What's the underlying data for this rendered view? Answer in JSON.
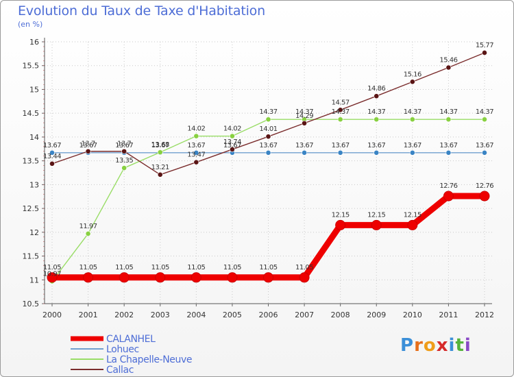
{
  "title": "Evolution du Taux de Taxe d'Habitation",
  "subtitle": "(en %)",
  "logo": {
    "letters": [
      "P",
      "r",
      "o",
      "x",
      "i",
      "t",
      "i"
    ],
    "colors": [
      "#3b8fd8",
      "#e66f1b",
      "#ef9d1a",
      "#d62a2a",
      "#3b8fd8",
      "#55b33b",
      "#8a49c6"
    ]
  },
  "chart_data": {
    "type": "line",
    "title": "Evolution du Taux de Taxe d'Habitation",
    "ylabel": "(en %)",
    "xlabel": "",
    "ylim": [
      10.5,
      16
    ],
    "yticks": [
      "10.5",
      "11",
      "11.5",
      "12",
      "12.5",
      "13",
      "13.5",
      "14",
      "14.5",
      "15",
      "15.5",
      "16"
    ],
    "categories": [
      "2000",
      "2001",
      "2002",
      "2003",
      "2004",
      "2005",
      "2006",
      "2007",
      "2008",
      "2009",
      "2010",
      "2011",
      "2012"
    ],
    "series": [
      {
        "name": "CALANHEL",
        "color": "#ee0000",
        "marker": "#ee0000",
        "thick": true,
        "values": [
          11.05,
          11.05,
          11.05,
          11.05,
          11.05,
          11.05,
          11.05,
          11.05,
          12.15,
          12.15,
          12.15,
          12.76,
          12.76
        ],
        "labels": [
          "11.05",
          "11.05",
          "11.05",
          "11.05",
          "11.05",
          "11.05",
          "11.05",
          "11.05",
          "12.15",
          "12.15",
          "12.15",
          "12.76",
          "12.76"
        ]
      },
      {
        "name": "Lohuec",
        "color": "#6f9fcf",
        "marker": "#3a84c4",
        "thick": false,
        "values": [
          13.67,
          13.67,
          13.67,
          13.67,
          13.67,
          13.67,
          13.67,
          13.67,
          13.67,
          13.67,
          13.67,
          13.67,
          13.67
        ],
        "labels": [
          "13.67",
          "13.67",
          "13.67",
          "13.67",
          "13.67",
          "13.67",
          "13.67",
          "13.67",
          "13.67",
          "13.67",
          "13.67",
          "13.67",
          "13.67"
        ]
      },
      {
        "name": "La Chapelle-Neuve",
        "color": "#99dd66",
        "marker": "#88d040",
        "thick": false,
        "values": [
          10.97,
          11.97,
          13.35,
          13.68,
          14.02,
          14.02,
          14.37,
          14.37,
          14.37,
          14.37,
          14.37,
          14.37,
          14.37
        ],
        "labels": [
          "10.97",
          "11.97",
          "13.35",
          "13.68",
          "14.02",
          "14.02",
          "14.37",
          "14.37",
          "14.37",
          "14.37",
          "14.37",
          "14.37",
          "14.37"
        ]
      },
      {
        "name": "Callac",
        "color": "#7a2c2c",
        "marker": "#5a1515",
        "thick": false,
        "values": [
          13.44,
          13.7,
          13.7,
          13.21,
          13.47,
          13.74,
          14.01,
          14.29,
          14.57,
          14.86,
          15.16,
          15.46,
          15.77
        ],
        "labels": [
          "13.44",
          "13.7",
          "13.7",
          "13.21",
          "13.47",
          "13.74",
          "14.01",
          "14.29",
          "14.57",
          "14.86",
          "15.16",
          "15.46",
          "15.77"
        ]
      }
    ]
  }
}
